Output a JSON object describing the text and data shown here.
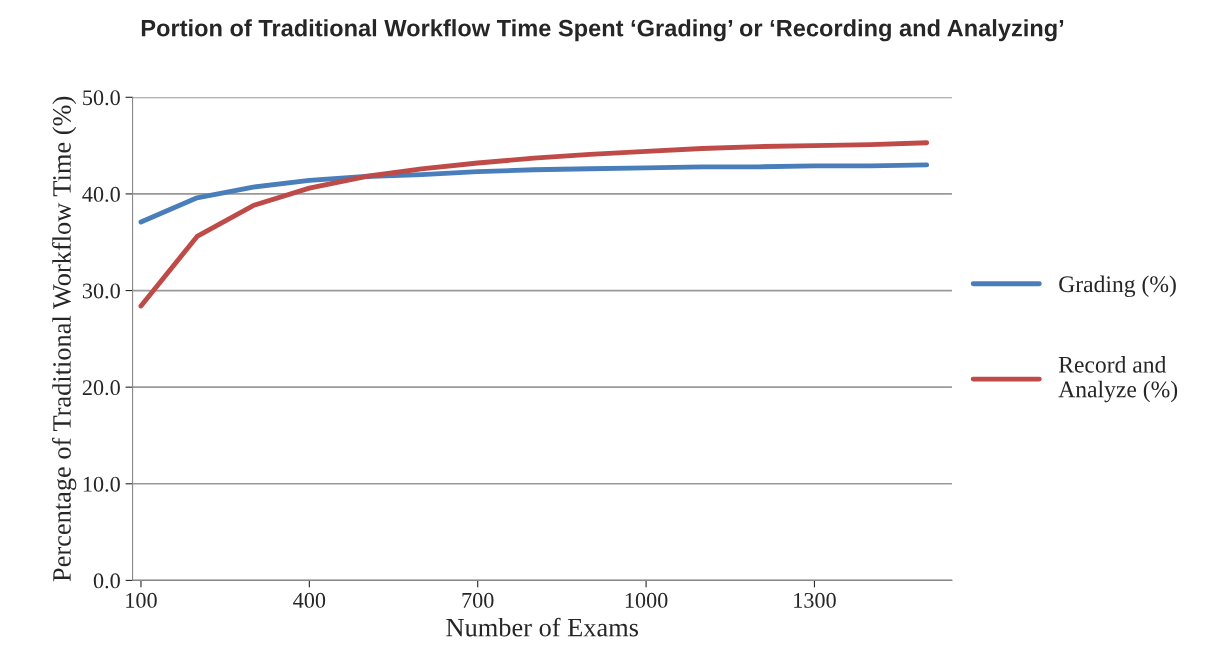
{
  "chart_data": {
    "type": "line",
    "title": "Portion of Traditional Workflow Time Spent ‘Grading’ or ‘Recording and Analyzing’",
    "xlabel": "Number of Exams",
    "ylabel": "Percentage of Traditional Workflow Time (%)",
    "x": [
      100,
      200,
      300,
      400,
      500,
      600,
      700,
      800,
      900,
      1000,
      1100,
      1200,
      1300,
      1400,
      1500
    ],
    "series": [
      {
        "name": "Grading (%)",
        "color": "#4a7ebb",
        "values": [
          37.1,
          39.6,
          40.7,
          41.4,
          41.8,
          42.0,
          42.3,
          42.5,
          42.6,
          42.7,
          42.8,
          42.8,
          42.9,
          42.9,
          43.0
        ]
      },
      {
        "name": "Record and\nAnalyze (%)",
        "color": "#be4b48",
        "values": [
          28.4,
          35.6,
          38.8,
          40.6,
          41.8,
          42.6,
          43.2,
          43.7,
          44.1,
          44.4,
          44.7,
          44.9,
          45.0,
          45.1,
          45.3
        ]
      }
    ],
    "xlim": [
      85,
      1545
    ],
    "xticks": [
      100,
      400,
      700,
      1000,
      1300
    ],
    "ylim": [
      0,
      50
    ],
    "yticks": [
      {
        "value": 0,
        "label": "0.0"
      },
      {
        "value": 10,
        "label": "10.0"
      },
      {
        "value": 20,
        "label": "20.0"
      },
      {
        "value": 30,
        "label": "30.0"
      },
      {
        "value": 40,
        "label": "40.0"
      },
      {
        "value": 50,
        "label": "50.0"
      }
    ],
    "grid": "y",
    "legend": "right",
    "marker": "none",
    "line_style": "solid"
  }
}
